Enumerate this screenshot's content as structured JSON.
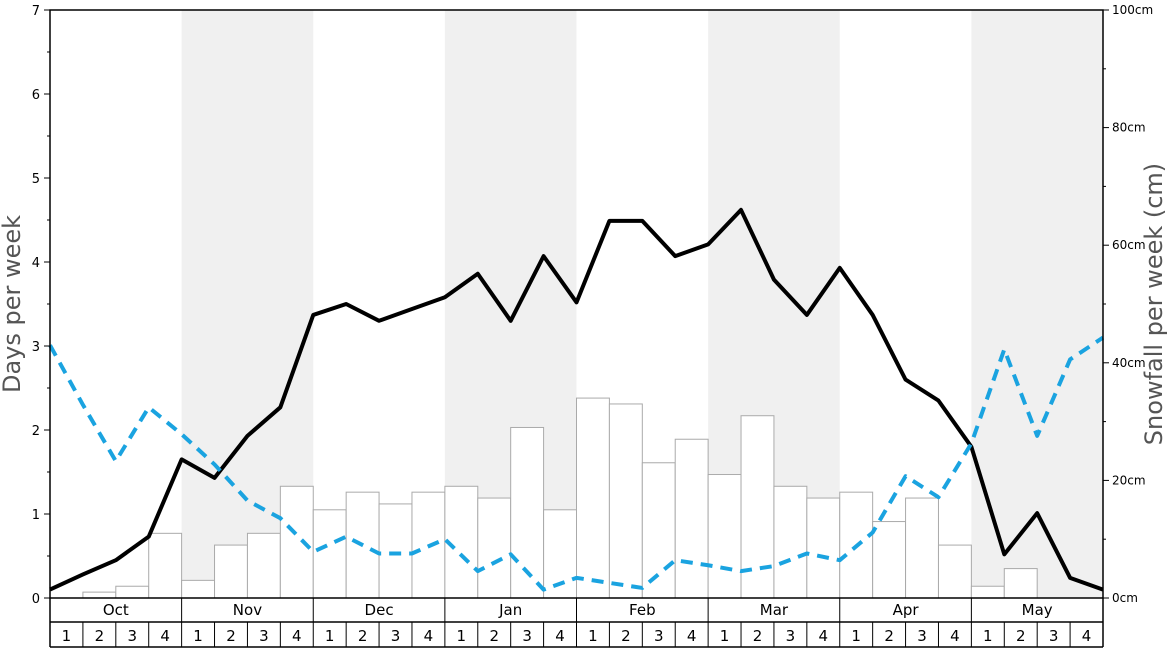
{
  "chart_data": {
    "type": "bar",
    "months": [
      "Oct",
      "Nov",
      "Dec",
      "Jan",
      "Feb",
      "Mar",
      "Apr",
      "May"
    ],
    "weeks": [
      "1",
      "2",
      "3",
      "4"
    ],
    "ylabel": "Days per week",
    "y2label": "Snowfall per week (cm)",
    "ylim": [
      0,
      7
    ],
    "y_ticks": [
      "0",
      "1",
      "2",
      "3",
      "4",
      "5",
      "6",
      "7"
    ],
    "y2lim": [
      0,
      100
    ],
    "y2_ticks": [
      "0cm",
      "20cm",
      "40cm",
      "60cm",
      "80cm",
      "100cm"
    ],
    "shaded_months": [
      "Nov",
      "Jan",
      "Mar",
      "May"
    ],
    "series": [
      {
        "type": "bar",
        "axis": "right",
        "unit": "cm",
        "color": "#ffffff",
        "edge_color": "#aaaaaa",
        "values": [
          0,
          1,
          2,
          11,
          3,
          9,
          11,
          19,
          15,
          18,
          16,
          18,
          19,
          17,
          29,
          15,
          34,
          33,
          23,
          27,
          21,
          31,
          19,
          17,
          18,
          13,
          17,
          9,
          2,
          5,
          0,
          0
        ]
      },
      {
        "type": "line",
        "axis": "left",
        "style": "solid",
        "color": "#000000",
        "values": [
          0.1,
          0.28,
          0.45,
          0.73,
          1.65,
          1.43,
          1.93,
          2.27,
          3.37,
          3.5,
          3.3,
          3.44,
          3.58,
          3.86,
          3.3,
          4.07,
          3.52,
          4.49,
          4.49,
          4.07,
          4.21,
          4.62,
          3.79,
          3.37,
          3.93,
          3.37,
          2.6,
          2.35,
          1.8,
          0.52,
          1.01,
          0.24,
          0.1
        ]
      },
      {
        "type": "line",
        "axis": "left",
        "style": "dashed",
        "color": "#1aa3e0",
        "values": [
          3.01,
          2.3,
          1.63,
          2.27,
          1.95,
          1.59,
          1.16,
          0.95,
          0.55,
          0.73,
          0.53,
          0.53,
          0.7,
          0.32,
          0.52,
          0.1,
          0.24,
          0.18,
          0.12,
          0.45,
          0.39,
          0.32,
          0.38,
          0.53,
          0.45,
          0.78,
          1.45,
          1.2,
          1.84,
          2.96,
          1.93,
          2.84,
          3.1
        ]
      }
    ]
  }
}
